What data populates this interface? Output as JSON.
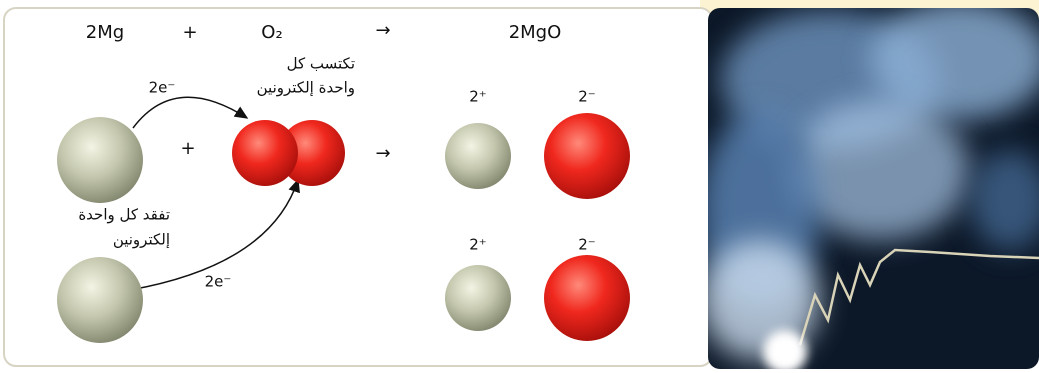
{
  "equation": {
    "reactant1": "2Mg",
    "plus": "+",
    "reactant2": "O₂",
    "arrow": "→",
    "product": "2MgO"
  },
  "transfer": {
    "electrons_top": "2e⁻",
    "electrons_bottom": "2e⁻",
    "gain_label": [
      "تكتسب كل",
      "واحدة إلكترونين"
    ],
    "lose_label": [
      "تفقد كل واحدة",
      "إلكترونين"
    ],
    "plus": "+",
    "arrow": "→"
  },
  "ions": {
    "mg_top": "2⁺",
    "o_top": "2⁻",
    "mg_bottom": "2⁺",
    "o_bottom": "2⁻"
  }
}
